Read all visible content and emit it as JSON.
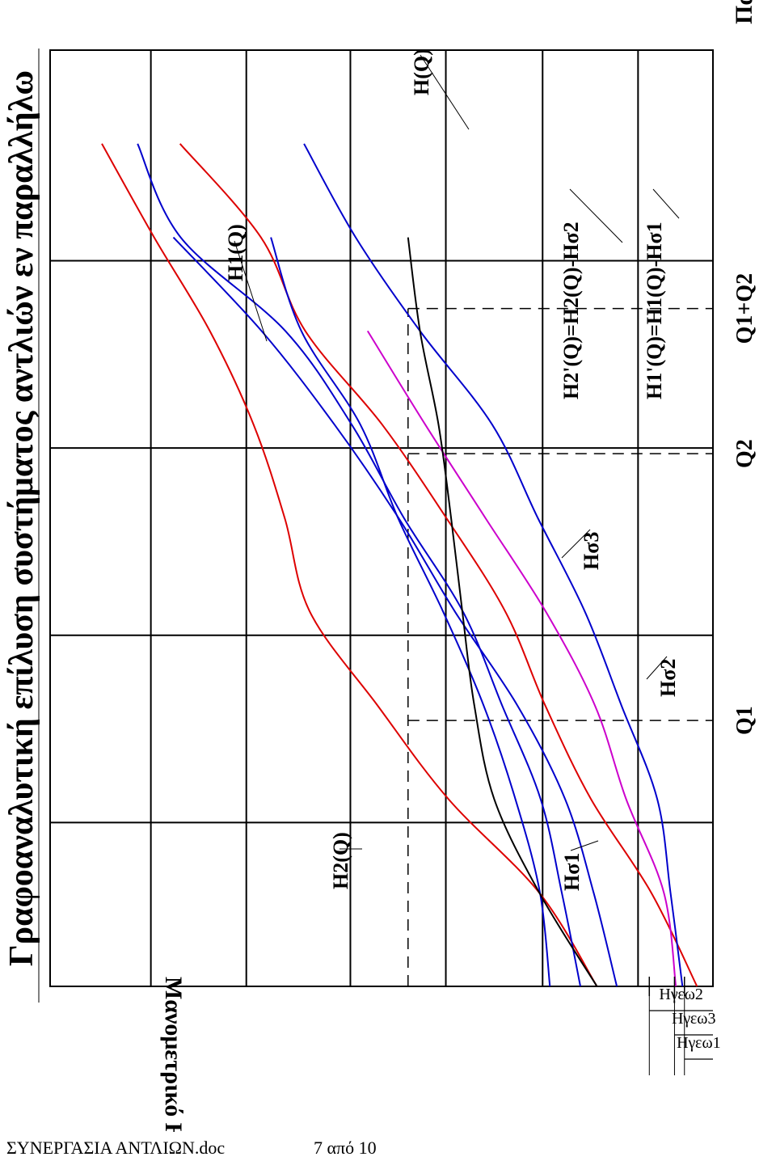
{
  "chart_data": {
    "type": "line",
    "title": "Γραφοαναλυτική επίλυση συστήματος αντλιών εν παραλλήλω",
    "xlabel": "Παροχή Q",
    "ylabel": "Μανομετρικό H",
    "xlim": [
      0,
      10
    ],
    "ylim": [
      0,
      10
    ],
    "grid": true,
    "x_ticks": [
      {
        "label": "Q1",
        "x": 2.84
      },
      {
        "label": "Q2",
        "x": 5.69
      },
      {
        "label": "Q1+Q2",
        "x": 7.24
      }
    ],
    "reference_levels": [
      {
        "label": "Hγεω1",
        "y": 0.43
      },
      {
        "label": "Hγεω3",
        "y": 0.58
      },
      {
        "label": "Hγεω2",
        "y": 0.96
      }
    ],
    "series": [
      {
        "name": "H1(Q)",
        "color": "#dd0000",
        "points": [
          [
            0,
            1.75
          ],
          [
            1,
            2.62
          ],
          [
            2,
            3.99
          ],
          [
            3,
            5.06
          ],
          [
            4,
            6.08
          ],
          [
            5,
            6.46
          ],
          [
            6,
            6.93
          ],
          [
            7,
            7.59
          ],
          [
            8,
            8.43
          ],
          [
            9,
            9.22
          ]
        ]
      },
      {
        "name": "Hσ1",
        "color": "#dd0000",
        "points": [
          [
            0,
            0.24
          ],
          [
            1,
            0.93
          ],
          [
            2,
            1.84
          ],
          [
            3,
            2.53
          ],
          [
            4,
            3.13
          ],
          [
            5,
            4.02
          ],
          [
            6,
            4.99
          ],
          [
            7,
            6.15
          ],
          [
            8,
            6.82
          ],
          [
            9,
            8.04
          ]
        ]
      },
      {
        "name": "H2(Q)",
        "color": "#0000cc",
        "points": [
          [
            0,
            2.46
          ],
          [
            1,
            2.61
          ],
          [
            2,
            2.98
          ],
          [
            3,
            3.46
          ],
          [
            4,
            4.07
          ],
          [
            5,
            4.75
          ],
          [
            6,
            5.32
          ],
          [
            7,
            6.21
          ],
          [
            8,
            6.67
          ]
        ]
      },
      {
        "name": "Hσ2",
        "color": "#0000cc",
        "points": [
          [
            0,
            0.46
          ],
          [
            1,
            0.64
          ],
          [
            2,
            0.84
          ],
          [
            3,
            1.38
          ],
          [
            4,
            1.93
          ],
          [
            5,
            2.64
          ],
          [
            6,
            3.33
          ],
          [
            7,
            4.42
          ],
          [
            8,
            5.39
          ],
          [
            9,
            6.17
          ]
        ]
      },
      {
        "name": "H2'(Q)=H2(Q)-Hσ2",
        "color": "#0000cc",
        "points": [
          [
            0,
            2.0
          ],
          [
            1,
            2.28
          ],
          [
            2,
            2.6
          ],
          [
            3,
            3.18
          ],
          [
            4,
            3.77
          ],
          [
            5,
            4.66
          ],
          [
            6,
            5.45
          ],
          [
            7,
            6.45
          ],
          [
            8,
            8.03
          ],
          [
            9,
            8.68
          ]
        ]
      },
      {
        "name": "H1'(Q)=H1(Q)-Hσ1",
        "color": "#0000cc",
        "points": [
          [
            0,
            1.45
          ],
          [
            1,
            1.8
          ],
          [
            2,
            2.23
          ],
          [
            3,
            2.95
          ],
          [
            4,
            3.89
          ],
          [
            5,
            4.74
          ],
          [
            6,
            5.71
          ],
          [
            7,
            6.81
          ],
          [
            8,
            8.14
          ]
        ]
      },
      {
        "name": "Hσ3",
        "color": "#cc00cc",
        "points": [
          [
            0,
            0.56
          ],
          [
            1,
            0.74
          ],
          [
            2,
            1.31
          ],
          [
            3,
            1.78
          ],
          [
            4,
            2.52
          ],
          [
            5,
            3.43
          ],
          [
            6,
            4.34
          ],
          [
            7,
            5.21
          ]
        ]
      },
      {
        "name": "H(Q)",
        "color": "#000000",
        "points": [
          [
            0,
            1.75
          ],
          [
            1,
            2.62
          ],
          [
            2,
            3.3
          ],
          [
            3,
            3.6
          ],
          [
            4,
            3.78
          ],
          [
            5,
            3.95
          ],
          [
            6,
            4.14
          ],
          [
            7,
            4.42
          ],
          [
            8,
            4.6
          ]
        ]
      }
    ],
    "curve_labels": [
      "H1(Q)",
      "H2(Q)",
      "H(Q)",
      "Hσ1",
      "Hσ2",
      "Hσ3",
      "H2'(Q)=H2(Q)-Hσ2",
      "H1'(Q)=H1(Q)-Hσ1"
    ]
  },
  "footer": {
    "document_name": "ΣΥΝΕΡΓΑΣΙΑ ΑΝΤΛΙΩΝ.doc",
    "page_number": "7 από 10"
  }
}
